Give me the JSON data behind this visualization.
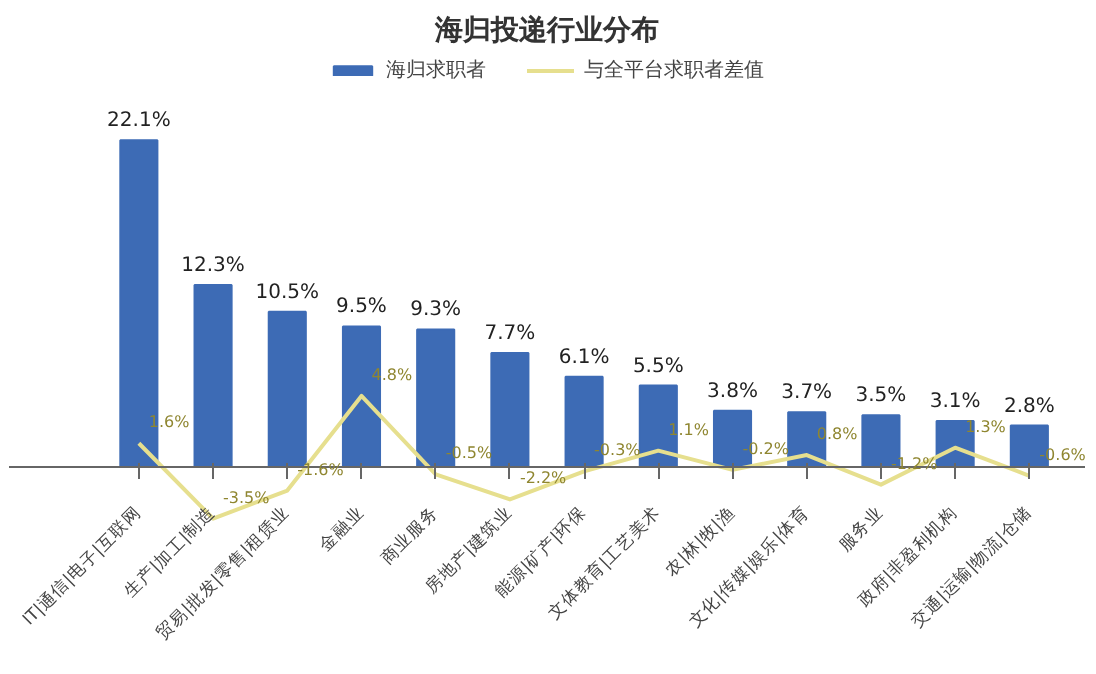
{
  "chart_data": {
    "type": "bar",
    "title": "海归投递行业分布",
    "categories": [
      "IT|通信|电子|互联网",
      "生产|加工|制造",
      "贸易|批发|零售|租赁业",
      "金融业",
      "商业服务",
      "房地产|建筑业",
      "能源|矿产|环保",
      "文体教育|工艺美术",
      "农|林|牧|渔",
      "文化|传媒|娱乐|体育",
      "服务业",
      "政府|非盈利机构",
      "交通|运输|物流|仓储"
    ],
    "series": [
      {
        "name": "海归求职者",
        "color": "#3d6bb5",
        "values": [
          22.1,
          12.3,
          10.5,
          9.5,
          9.3,
          7.7,
          6.1,
          5.5,
          3.8,
          3.7,
          3.5,
          3.1,
          2.8
        ],
        "value_labels": [
          "22.1%",
          "12.3%",
          "10.5%",
          "9.5%",
          "9.3%",
          "7.7%",
          "6.1%",
          "5.5%",
          "3.8%",
          "3.7%",
          "3.5%",
          "3.1%",
          "2.8%"
        ]
      },
      {
        "name": "与全平台求职者差值",
        "type": "line",
        "color": "#e6df8e",
        "values": [
          1.6,
          -3.5,
          -1.6,
          4.8,
          -0.5,
          -2.2,
          -0.3,
          1.1,
          -0.2,
          0.8,
          -1.2,
          1.3,
          -0.6
        ],
        "value_labels": [
          "1.6%",
          "-3.5%",
          "-1.6%",
          "4.8%",
          "-0.5%",
          "-2.2%",
          "-0.3%",
          "1.1%",
          "-0.2%",
          "0.8%",
          "-1.2%",
          "1.3%",
          "-0.6%"
        ]
      }
    ],
    "tick_labels": "x",
    "grid": false,
    "legend": "top",
    "line_style": "solid",
    "marker": "none"
  }
}
